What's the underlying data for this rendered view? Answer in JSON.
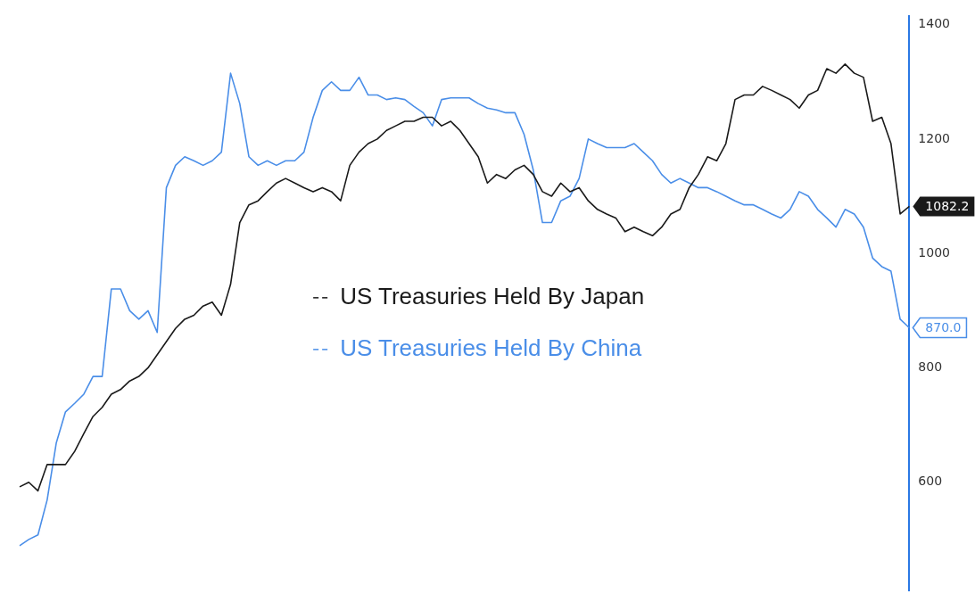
{
  "chart_data": {
    "type": "line",
    "categories": [
      null,
      null,
      null,
      null,
      null,
      null,
      null,
      null,
      null,
      null,
      null,
      null,
      null,
      null,
      null,
      null,
      null,
      null,
      null,
      null,
      null,
      null,
      null,
      null,
      null,
      null,
      null,
      null,
      null,
      null,
      null,
      null,
      null,
      null,
      null,
      null,
      null,
      null,
      null,
      null,
      null,
      null,
      null,
      null,
      null,
      null,
      null,
      null,
      null,
      null,
      null,
      null,
      null,
      null,
      null,
      null,
      null,
      null,
      null,
      null,
      null,
      null,
      null,
      null,
      null,
      null,
      null,
      null,
      null,
      null,
      null,
      null,
      null,
      null,
      null,
      null,
      null,
      null,
      null,
      null,
      null,
      null,
      null,
      null,
      null,
      null,
      null,
      null,
      null,
      null,
      null,
      null,
      null,
      null,
      null,
      null,
      null,
      null
    ],
    "series": [
      {
        "name": "US Treasuries Held By Japan",
        "color": "#1a1a1a",
        "values": [
          592,
          600,
          585,
          631,
          631,
          631,
          654,
          685,
          715,
          731,
          754,
          762,
          777,
          785,
          800,
          823,
          846,
          869,
          885,
          892,
          908,
          915,
          892,
          946,
          1054,
          1085,
          1092,
          1108,
          1123,
          1131,
          1123,
          1115,
          1108,
          1115,
          1108,
          1092,
          1154,
          1177,
          1192,
          1200,
          1215,
          1223,
          1231,
          1231,
          1238,
          1238,
          1223,
          1231,
          1215,
          1192,
          1169,
          1123,
          1138,
          1131,
          1146,
          1154,
          1138,
          1108,
          1100,
          1123,
          1108,
          1115,
          1092,
          1077,
          1069,
          1062,
          1038,
          1046,
          1038,
          1031,
          1046,
          1069,
          1077,
          1115,
          1138,
          1169,
          1162,
          1192,
          1269,
          1277,
          1277,
          1292,
          1285,
          1277,
          1269,
          1254,
          1277,
          1285,
          1323,
          1315,
          1331,
          1315,
          1308,
          1231,
          1238,
          1192,
          1069,
          1082.2
        ],
        "value_labels": [
          null,
          null,
          null,
          null,
          null,
          null,
          null,
          null,
          null,
          null,
          null,
          null,
          null,
          null,
          null,
          null,
          null,
          null,
          null,
          null,
          null,
          null,
          null,
          null,
          null,
          null,
          null,
          null,
          null,
          null,
          null,
          null,
          null,
          null,
          null,
          null,
          null,
          null,
          null,
          null,
          null,
          null,
          null,
          null,
          null,
          null,
          null,
          null,
          null,
          null,
          null,
          null,
          null,
          null,
          null,
          null,
          null,
          null,
          null,
          null,
          null,
          null,
          null,
          null,
          null,
          null,
          null,
          null,
          null,
          null,
          null,
          null,
          null,
          null,
          null,
          null,
          null,
          null,
          null,
          null,
          null,
          null,
          null,
          null,
          null,
          null,
          null,
          null,
          null,
          null,
          null,
          null,
          null,
          null,
          null,
          null,
          null,
          "1082.2"
        ]
      },
      {
        "name": "US Treasuries Held By China",
        "color": "#4a8ee8",
        "values": [
          489,
          500,
          508,
          569,
          669,
          723,
          738,
          754,
          785,
          785,
          938,
          938,
          900,
          885,
          900,
          862,
          1115,
          1154,
          1169,
          1162,
          1154,
          1162,
          1177,
          1315,
          1262,
          1169,
          1154,
          1162,
          1154,
          1162,
          1162,
          1177,
          1238,
          1285,
          1300,
          1285,
          1285,
          1308,
          1277,
          1277,
          1269,
          1272,
          1269,
          1257,
          1246,
          1223,
          1269,
          1272,
          1272,
          1272,
          1262,
          1254,
          1251,
          1246,
          1246,
          1208,
          1146,
          1054,
          1054,
          1092,
          1100,
          1131,
          1200,
          1192,
          1185,
          1185,
          1185,
          1192,
          1177,
          1162,
          1138,
          1123,
          1131,
          1123,
          1115,
          1115,
          1108,
          1100,
          1092,
          1085,
          1085,
          1077,
          1069,
          1062,
          1077,
          1108,
          1100,
          1077,
          1062,
          1046,
          1077,
          1069,
          1046,
          992,
          977,
          969,
          885,
          870.0
        ],
        "value_labels": [
          null,
          null,
          null,
          null,
          null,
          null,
          null,
          null,
          null,
          null,
          null,
          null,
          null,
          null,
          null,
          null,
          null,
          null,
          null,
          null,
          null,
          null,
          null,
          null,
          null,
          null,
          null,
          null,
          null,
          null,
          null,
          null,
          null,
          null,
          null,
          null,
          null,
          null,
          null,
          null,
          null,
          null,
          null,
          null,
          null,
          null,
          null,
          null,
          null,
          null,
          null,
          null,
          null,
          null,
          null,
          null,
          null,
          null,
          null,
          null,
          null,
          null,
          null,
          null,
          null,
          null,
          null,
          null,
          null,
          null,
          null,
          null,
          null,
          null,
          null,
          null,
          null,
          null,
          null,
          null,
          null,
          null,
          null,
          null,
          null,
          null,
          null,
          null,
          null,
          null,
          null,
          null,
          null,
          null,
          null,
          null,
          null,
          "870.0"
        ]
      }
    ],
    "ylim": [
      410,
      1415
    ],
    "yticks": [
      600,
      800,
      1000,
      1200,
      1400
    ],
    "legend": "center",
    "marker": "none",
    "line_style": "solid",
    "grid": false
  }
}
